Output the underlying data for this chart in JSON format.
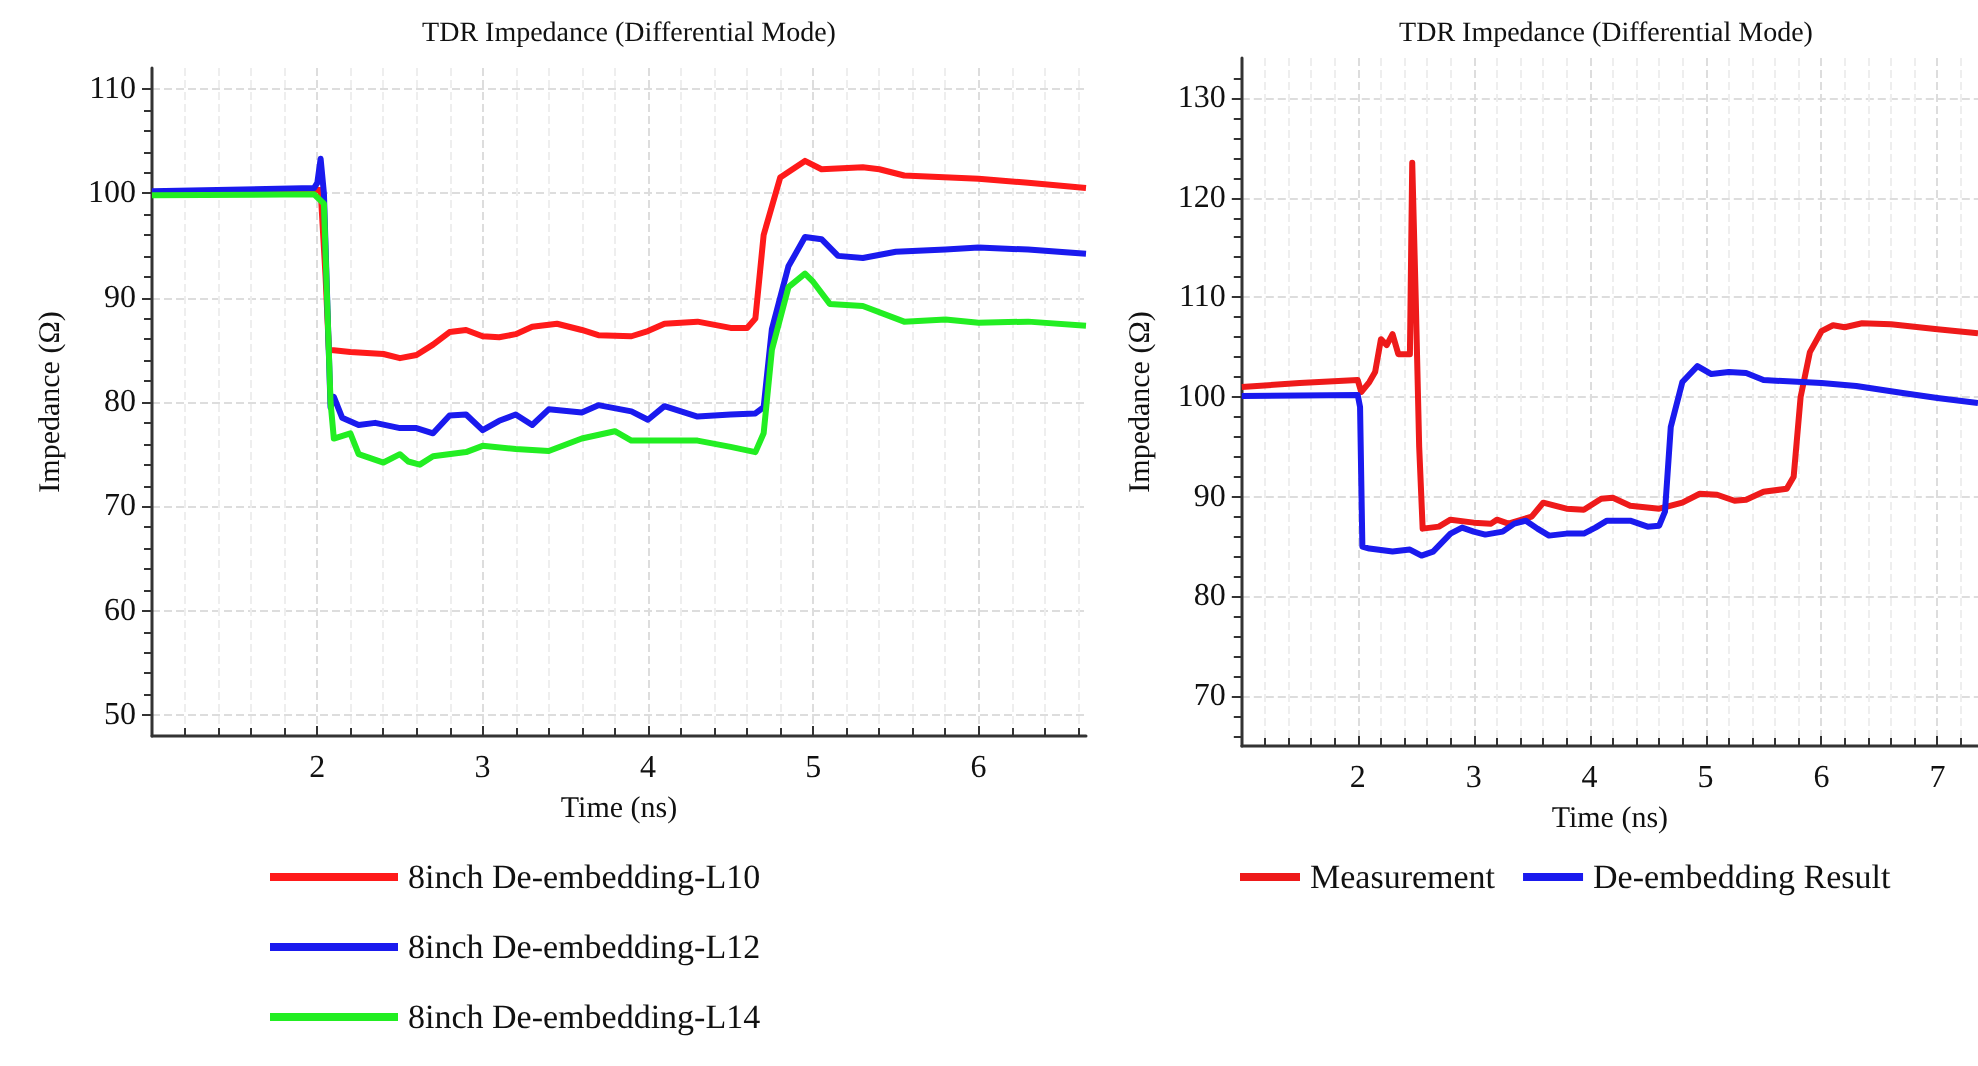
{
  "chart_data": [
    {
      "type": "line",
      "title": "TDR Impedance (Differential Mode)",
      "xlabel": "Time (ns)",
      "ylabel": "Impedance (Ω)",
      "xlim": [
        1,
        6.65
      ],
      "xticks": [
        2,
        3,
        4,
        5,
        6
      ],
      "ylim": [
        48,
        112
      ],
      "yticks": [
        50,
        60,
        70,
        80,
        90,
        100,
        110
      ],
      "grid": true,
      "legend": "bottom",
      "marker": "none",
      "line_style": "solid",
      "series": [
        {
          "name": "8inch De-embedding-L10",
          "color": "#ff1a1a",
          "x": [
            1.0,
            1.98,
            2.02,
            2.05,
            2.07,
            2.2,
            2.4,
            2.5,
            2.6,
            2.7,
            2.8,
            2.9,
            3.0,
            3.1,
            3.2,
            3.3,
            3.45,
            3.6,
            3.7,
            3.9,
            4.0,
            4.1,
            4.3,
            4.5,
            4.6,
            4.65,
            4.7,
            4.8,
            4.95,
            5.05,
            5.3,
            5.4,
            5.55,
            6.0,
            6.3,
            6.65
          ],
          "values": [
            100.1,
            100.3,
            100.3,
            92,
            85,
            84.8,
            84.6,
            84.2,
            84.5,
            85.5,
            86.7,
            86.9,
            86.3,
            86.2,
            86.5,
            87.2,
            87.5,
            86.9,
            86.4,
            86.3,
            86.8,
            87.5,
            87.7,
            87.1,
            87.1,
            88,
            96,
            101.5,
            103.1,
            102.3,
            102.5,
            102.3,
            101.7,
            101.4,
            101,
            100.5
          ]
        },
        {
          "name": "8inch De-embedding-L12",
          "color": "#1a1aee",
          "x": [
            1.0,
            1.98,
            2.0,
            2.02,
            2.04,
            2.08,
            2.1,
            2.15,
            2.25,
            2.35,
            2.5,
            2.6,
            2.7,
            2.8,
            2.9,
            3.0,
            3.1,
            3.2,
            3.3,
            3.4,
            3.6,
            3.7,
            3.9,
            4.0,
            4.1,
            4.2,
            4.3,
            4.5,
            4.65,
            4.7,
            4.75,
            4.85,
            4.95,
            5.05,
            5.15,
            5.3,
            5.5,
            5.8,
            6.0,
            6.3,
            6.65
          ],
          "values": [
            100.2,
            100.5,
            101,
            103.3,
            100,
            79.5,
            80.5,
            78.5,
            77.8,
            78,
            77.5,
            77.5,
            77,
            78.7,
            78.8,
            77.3,
            78.2,
            78.8,
            77.8,
            79.3,
            79,
            79.7,
            79.1,
            78.3,
            79.6,
            79.1,
            78.6,
            78.8,
            78.9,
            79.5,
            87,
            93,
            95.8,
            95.6,
            94,
            93.8,
            94.4,
            94.6,
            94.8,
            94.6,
            94.2
          ]
        },
        {
          "name": "8inch De-embedding-L14",
          "color": "#22ee22",
          "x": [
            1.0,
            1.98,
            2.04,
            2.08,
            2.1,
            2.2,
            2.25,
            2.4,
            2.5,
            2.55,
            2.62,
            2.7,
            2.9,
            3.0,
            3.2,
            3.4,
            3.6,
            3.8,
            3.9,
            4.1,
            4.3,
            4.5,
            4.65,
            4.7,
            4.75,
            4.85,
            4.95,
            5.0,
            5.1,
            5.3,
            5.55,
            5.8,
            6.0,
            6.3,
            6.65
          ],
          "values": [
            99.8,
            99.9,
            99,
            80,
            76.5,
            77,
            75,
            74.2,
            75,
            74.3,
            74,
            74.8,
            75.2,
            75.8,
            75.5,
            75.3,
            76.5,
            77.2,
            76.3,
            76.3,
            76.3,
            75.7,
            75.2,
            77,
            85,
            91,
            92.3,
            91.5,
            89.4,
            89.2,
            87.7,
            87.9,
            87.6,
            87.7,
            87.3
          ]
        }
      ]
    },
    {
      "type": "line",
      "title": "TDR Impedance (Differential Mode)",
      "xlabel": "Time (ns)",
      "ylabel": "Impedance (Ω)",
      "xlim": [
        1,
        7.35
      ],
      "xticks": [
        2,
        3,
        4,
        5,
        6,
        7
      ],
      "ylim": [
        65,
        134
      ],
      "yticks": [
        70,
        80,
        90,
        100,
        110,
        120,
        130
      ],
      "grid": true,
      "legend": "bottom",
      "marker": "none",
      "line_style": "solid",
      "series": [
        {
          "name": "Measurement",
          "color": "#ee1a1a",
          "x": [
            1.0,
            1.5,
            2.0,
            2.03,
            2.1,
            2.15,
            2.2,
            2.25,
            2.3,
            2.35,
            2.45,
            2.47,
            2.5,
            2.53,
            2.56,
            2.7,
            2.8,
            3.0,
            3.15,
            3.2,
            3.3,
            3.5,
            3.6,
            3.8,
            3.95,
            4.1,
            4.2,
            4.35,
            4.6,
            4.8,
            4.95,
            5.1,
            5.25,
            5.35,
            5.5,
            5.7,
            5.76,
            5.82,
            5.9,
            6.0,
            6.1,
            6.2,
            6.35,
            6.6,
            7.0,
            7.35
          ],
          "values": [
            101,
            101.4,
            101.7,
            100.5,
            101.5,
            102.5,
            105.8,
            105.2,
            106.3,
            104.3,
            104.3,
            123.5,
            110,
            95,
            86.8,
            87,
            87.7,
            87.4,
            87.3,
            87.7,
            87.3,
            88,
            89.4,
            88.8,
            88.7,
            89.8,
            89.9,
            89.1,
            88.8,
            89.4,
            90.3,
            90.2,
            89.6,
            89.7,
            90.5,
            90.8,
            92,
            100,
            104.5,
            106.6,
            107.2,
            107,
            107.4,
            107.3,
            106.8,
            106.4
          ]
        },
        {
          "name": "De-embedding Result",
          "color": "#1a1aee",
          "x": [
            1.0,
            2.0,
            2.02,
            2.04,
            2.1,
            2.3,
            2.45,
            2.55,
            2.65,
            2.8,
            2.9,
            3.0,
            3.1,
            3.25,
            3.35,
            3.45,
            3.55,
            3.65,
            3.8,
            3.95,
            4.05,
            4.15,
            4.35,
            4.5,
            4.6,
            4.65,
            4.7,
            4.8,
            4.93,
            5.05,
            5.2,
            5.35,
            5.5,
            6.0,
            6.3,
            6.7,
            7.0,
            7.35
          ],
          "values": [
            100.1,
            100.2,
            99,
            85,
            84.8,
            84.5,
            84.7,
            84.1,
            84.5,
            86.3,
            86.9,
            86.5,
            86.2,
            86.5,
            87.3,
            87.6,
            86.8,
            86.1,
            86.3,
            86.3,
            86.9,
            87.6,
            87.6,
            87,
            87.1,
            88.5,
            97,
            101.5,
            103.1,
            102.3,
            102.5,
            102.4,
            101.7,
            101.4,
            101.1,
            100.4,
            99.9,
            99.4
          ]
        }
      ]
    }
  ]
}
